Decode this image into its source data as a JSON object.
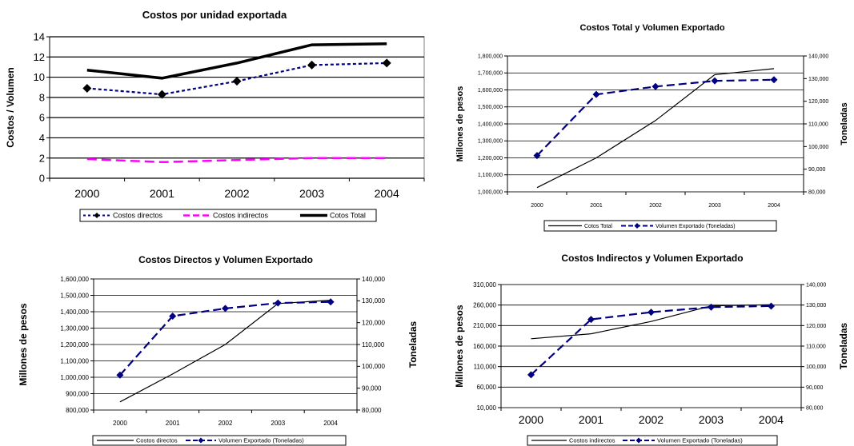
{
  "chart_data": [
    {
      "type": "line",
      "title": "Costos por unidad exportada",
      "xlabel": "",
      "ylabel": "Costos / Volumen",
      "categories": [
        "2000",
        "2001",
        "2002",
        "2003",
        "2004"
      ],
      "ylim": [
        0,
        14
      ],
      "yticks": [
        "0",
        "2",
        "4",
        "6",
        "8",
        "10",
        "12",
        "14"
      ],
      "grid": true,
      "legend_position": "bottom",
      "series": [
        {
          "name": "Costos directos",
          "values": [
            8.9,
            8.3,
            9.6,
            11.2,
            11.4
          ],
          "color": "#000080",
          "style": "dotted-diamond"
        },
        {
          "name": "Costos indirectos",
          "values": [
            1.9,
            1.6,
            1.8,
            2.0,
            2.0
          ],
          "color": "#ff00ff",
          "style": "dashed"
        },
        {
          "name": "Cotos Total",
          "values": [
            10.7,
            9.9,
            11.4,
            13.2,
            13.3
          ],
          "color": "#000000",
          "style": "thick"
        }
      ]
    },
    {
      "type": "line",
      "title": "Costos Total y Volumen Exportado",
      "ylabel": "Millones de pesos",
      "y2label": "Toneladas",
      "categories": [
        "2000",
        "2001",
        "2002",
        "2003",
        "2004"
      ],
      "ylim": [
        1000000,
        1800000
      ],
      "yticks": [
        "1,000,000",
        "1,100,000",
        "1,200,000",
        "1,300,000",
        "1,400,000",
        "1,500,000",
        "1,600,000",
        "1,700,000",
        "1,800,000"
      ],
      "y2lim": [
        80000,
        140000
      ],
      "y2ticks": [
        "80,000",
        "90,000",
        "100,000",
        "110,000",
        "120,000",
        "130,000",
        "140,000"
      ],
      "grid": true,
      "legend_position": "bottom",
      "series": [
        {
          "name": "Cotos Total",
          "axis": "left",
          "values": [
            1025000,
            1200000,
            1420000,
            1690000,
            1725000
          ],
          "color": "#000000",
          "style": "thin"
        },
        {
          "name": "Volumen Exportado (Toneladas)",
          "axis": "right",
          "values": [
            96000,
            123000,
            126500,
            129000,
            129500
          ],
          "color": "#000080",
          "style": "dashed-diamond"
        }
      ]
    },
    {
      "type": "line",
      "title": "Costos Directos y Volumen Exportado",
      "ylabel": "Millones de pesos",
      "y2label": "Toneladas",
      "categories": [
        "2000",
        "2001",
        "2002",
        "2003",
        "2004"
      ],
      "ylim": [
        800000,
        1600000
      ],
      "yticks": [
        "800,000",
        "900,000",
        "1,000,000",
        "1,100,000",
        "1,200,000",
        "1,300,000",
        "1,400,000",
        "1,500,000",
        "1,600,000"
      ],
      "y2lim": [
        80000,
        140000
      ],
      "y2ticks": [
        "80,000",
        "90,000",
        "100,000",
        "110,000",
        "120,000",
        "130,000",
        "140,000"
      ],
      "grid": true,
      "legend_position": "bottom",
      "series": [
        {
          "name": "Costos directos",
          "axis": "left",
          "values": [
            850000,
            1020000,
            1200000,
            1450000,
            1470000
          ],
          "color": "#000000",
          "style": "thin"
        },
        {
          "name": "Volumen Exportado (Toneladas)",
          "axis": "right",
          "values": [
            96000,
            123000,
            126500,
            129000,
            129500
          ],
          "color": "#000080",
          "style": "dashed-diamond"
        }
      ]
    },
    {
      "type": "line",
      "title": "Costos Indirectos y Volumen Exportado",
      "ylabel": "Millones de pesos",
      "y2label": "Toneladas",
      "categories": [
        "2000",
        "2001",
        "2002",
        "2003",
        "2004"
      ],
      "ylim": [
        10000,
        310000
      ],
      "yticks": [
        "10,000",
        "60,000",
        "110,000",
        "160,000",
        "210,000",
        "260,000",
        "310,000"
      ],
      "y2lim": [
        80000,
        140000
      ],
      "y2ticks": [
        "80,000",
        "90,000",
        "100,000",
        "110,000",
        "120,000",
        "130,000",
        "140,000"
      ],
      "grid": true,
      "legend_position": "bottom",
      "series": [
        {
          "name": "Costos indirectos",
          "axis": "left",
          "values": [
            178000,
            190000,
            220000,
            258000,
            261000
          ],
          "color": "#000000",
          "style": "thin"
        },
        {
          "name": "Volumen Exportado (Toneladas)",
          "axis": "right",
          "values": [
            96000,
            123000,
            126500,
            129000,
            129500
          ],
          "color": "#000080",
          "style": "dashed-diamond"
        }
      ]
    }
  ]
}
